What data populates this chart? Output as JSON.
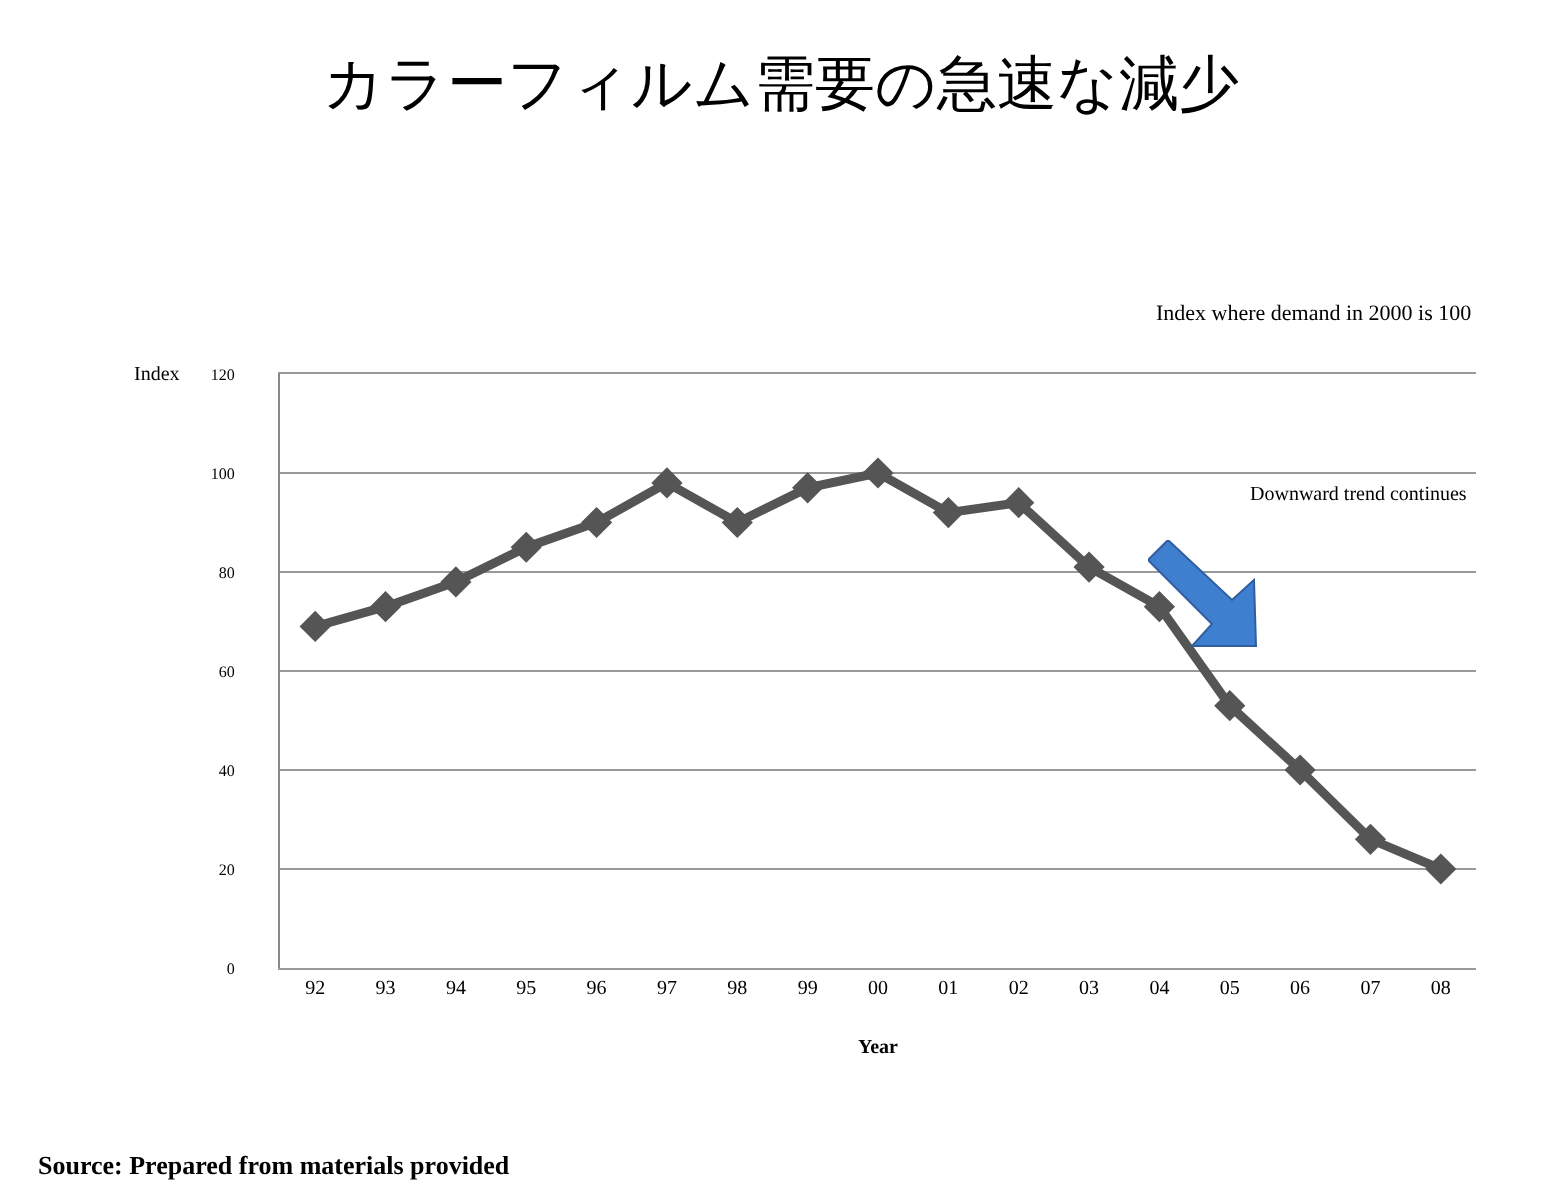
{
  "chart_data": {
    "type": "line",
    "title": "カラーフィルム需要の急速な減少",
    "subtitle": "Index where demand in 2000 is 100",
    "xlabel": "Year",
    "ylabel": "Index",
    "categories": [
      "92",
      "93",
      "94",
      "95",
      "96",
      "97",
      "98",
      "99",
      "00",
      "01",
      "02",
      "03",
      "04",
      "05",
      "06",
      "07",
      "08"
    ],
    "series": [
      {
        "color": "#555555",
        "values": [
          69,
          73,
          78,
          85,
          90,
          98,
          90,
          97,
          100,
          92,
          94,
          81,
          73,
          53,
          40,
          26,
          20
        ]
      }
    ],
    "ylim": [
      0,
      120
    ],
    "yticks": [
      0,
      20,
      40,
      60,
      80,
      100,
      120
    ],
    "grid": "y",
    "marker": "diamond",
    "line_style": "solid",
    "annotations": [
      "Downward trend continues",
      "Source: Prepared from materials provided"
    ]
  }
}
